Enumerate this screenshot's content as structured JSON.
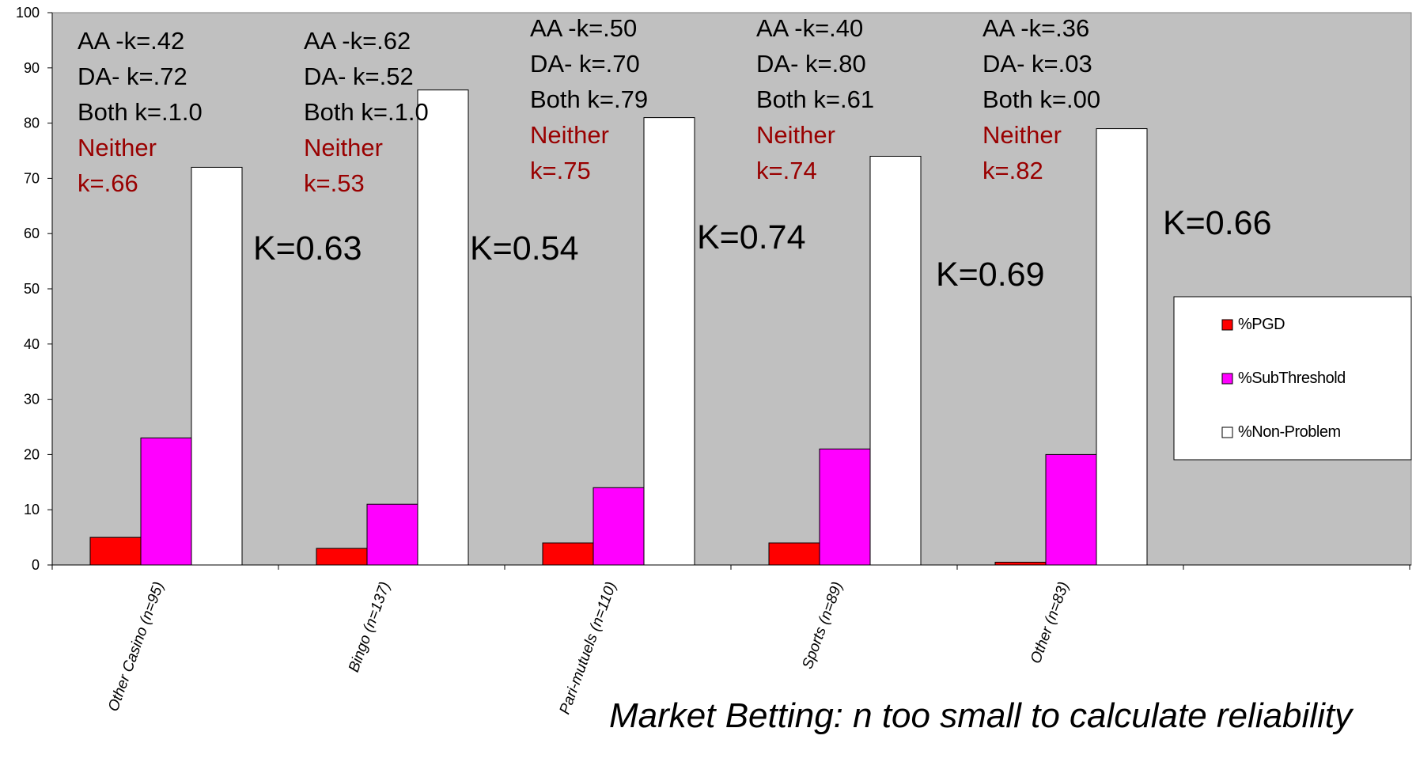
{
  "chart_data": {
    "type": "bar",
    "categories": [
      "Other Casino (n=95)",
      "Bingo (n=137)",
      "Pari-mutuels (n=110)",
      "Sports (n=89)",
      "Other (n=83)"
    ],
    "series": [
      {
        "name": "%PGD",
        "color": "#ff0000",
        "values": [
          5,
          3,
          4,
          4,
          0.5
        ]
      },
      {
        "name": "%SubThreshold",
        "color": "#ff00ff",
        "values": [
          23,
          11,
          14,
          21,
          20
        ]
      },
      {
        "name": "%Non-Problem",
        "color": "#ffffff",
        "values": [
          72,
          86,
          81,
          74,
          79
        ]
      }
    ],
    "ylim": [
      0,
      100
    ],
    "yticks": [
      "0",
      "10",
      "20",
      "30",
      "40",
      "50",
      "60",
      "70",
      "80",
      "90",
      "100"
    ],
    "grid": false,
    "plot_background": "#c0c0c0",
    "legend_position": "right",
    "annotations": [
      {
        "lines": [
          "AA -k=.42",
          "DA- k=.72",
          "Both k=.1.0"
        ],
        "neither": [
          "Neither",
          "k=.66"
        ],
        "kappa": "K=0.63"
      },
      {
        "lines": [
          "AA -k=.62",
          "DA- k=.52",
          "Both k=.1.0"
        ],
        "neither": [
          "Neither",
          "k=.53"
        ],
        "kappa": "K=0.54"
      },
      {
        "lines": [
          "AA -k=.50",
          "DA- k=.70",
          "Both k=.79"
        ],
        "neither": [
          "Neither",
          "k=.75"
        ],
        "kappa": "K=0.74"
      },
      {
        "lines": [
          "AA -k=.40",
          "DA- k=.80",
          "Both k=.61"
        ],
        "neither": [
          "Neither",
          "k=.74"
        ],
        "kappa": "K=0.69"
      },
      {
        "lines": [
          "AA -k=.36",
          "DA- k=.03",
          "Both k=.00"
        ],
        "neither": [
          "Neither",
          "k=.82"
        ],
        "kappa": "K=0.66"
      }
    ],
    "annotation_color": "#990000"
  },
  "footnote": "Market Betting: n too small to calculate reliability"
}
